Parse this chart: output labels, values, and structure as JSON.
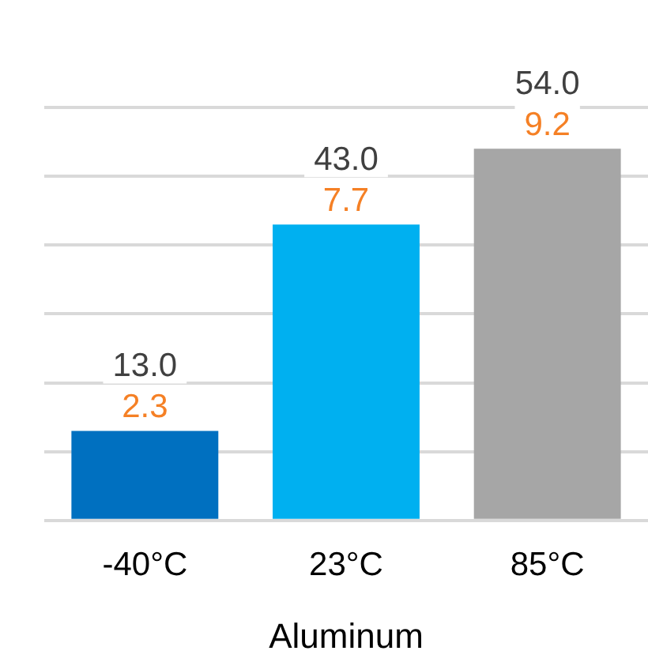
{
  "chart_data": {
    "type": "bar",
    "xlabel": "Aluminum",
    "categories": [
      "-40°C",
      "23°C",
      "85°C"
    ],
    "values": [
      13.0,
      43.0,
      54.0
    ],
    "colors": [
      "#0070c0",
      "#00b0f0",
      "#a6a6a6"
    ],
    "value_labels": [
      "13.0",
      "43.0",
      "54.0"
    ],
    "tick_labels": "x",
    "grid": "y",
    "annotations": [
      {
        "text": "2.3",
        "x": "-40°C",
        "y": 13.0
      },
      {
        "text": "7.7",
        "x": "23°C",
        "y": 43.0
      },
      {
        "text": "9.2",
        "x": "85°C",
        "y": 54.0
      }
    ]
  }
}
